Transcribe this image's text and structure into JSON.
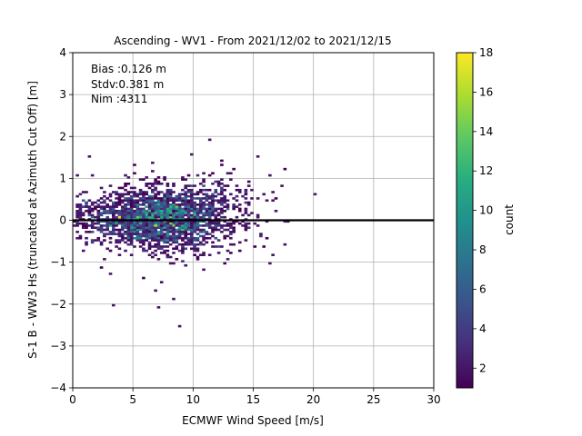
{
  "chart_data": {
    "type": "heatmap",
    "title": "Ascending - WV1 - From 2021/12/02 to 2021/12/15",
    "xlabel": "ECMWF Wind Speed [m/s]",
    "ylabel": "S-1 B - WW3 Hs (truncated at Azimuth Cut Off) [m]",
    "xlim": [
      0,
      30
    ],
    "ylim": [
      -4,
      4
    ],
    "xticks": [
      "0",
      "5",
      "10",
      "15",
      "20",
      "25",
      "30"
    ],
    "yticks": [
      "−4",
      "−3",
      "−2",
      "−1",
      "0",
      "1",
      "2",
      "3",
      "4"
    ],
    "grid": true,
    "reference_line_y": 0,
    "stats": [
      "Bias :0.126 m",
      "Stdv:0.381 m",
      "Nim :4311"
    ],
    "colorbar": {
      "label": "count",
      "colormap": "viridis",
      "range": [
        1,
        18
      ],
      "ticks": [
        "2",
        "4",
        "6",
        "8",
        "10",
        "12",
        "14",
        "16",
        "18"
      ],
      "tick_values": [
        2,
        4,
        6,
        8,
        10,
        12,
        14,
        16,
        18
      ]
    },
    "density_model": {
      "x_center": 7.5,
      "y_center": 0.05,
      "peak_count": 18,
      "x_spread": 3.0,
      "y_spread": 0.35,
      "n_points": 4311
    }
  }
}
